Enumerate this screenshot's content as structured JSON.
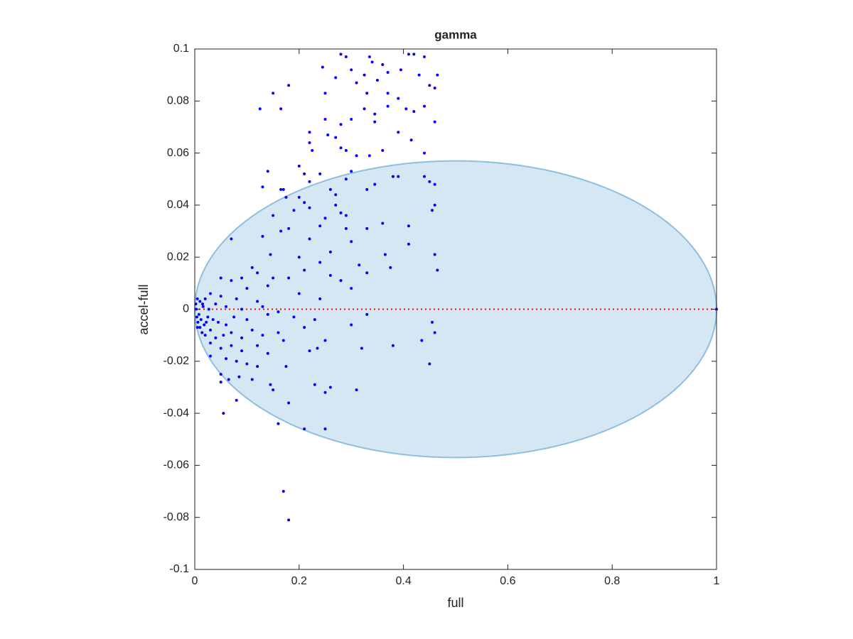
{
  "chart_data": {
    "type": "scatter",
    "title": "gamma",
    "x_label": "full",
    "y_label": "accel-full",
    "color": "#0000ff",
    "x": [
      0.28,
      0.29,
      0.335,
      0.34,
      0.41,
      0.42,
      0.44,
      0.245,
      0.3,
      0.325,
      0.37,
      0.36,
      0.395,
      0.43,
      0.465,
      0.27,
      0.31,
      0.35,
      0.45,
      0.46,
      0.18,
      0.15,
      0.25,
      0.33,
      0.37,
      0.39,
      0.44,
      0.125,
      0.165,
      0.325,
      0.345,
      0.37,
      0.405,
      0.42,
      0.25,
      0.28,
      0.3,
      0.345,
      0.22,
      0.255,
      0.27,
      0.39,
      0.415,
      0.46,
      0.22,
      0.225,
      0.28,
      0.29,
      0.31,
      0.335,
      0.36,
      0.44,
      0.14,
      0.2,
      0.21,
      0.24,
      0.29,
      0.3,
      0.38,
      0.39,
      0.44,
      0.45,
      0.46,
      0.13,
      0.165,
      0.17,
      0.22,
      0.26,
      0.27,
      0.33,
      0.345,
      0.175,
      0.2,
      0.21,
      0.22,
      0.27,
      0.28,
      0.46,
      0.455,
      0.15,
      0.19,
      0.25,
      0.29,
      0.18,
      0.165,
      0.24,
      0.29,
      0.33,
      0.36,
      0.41,
      0.13,
      0.07,
      0.22,
      0.3,
      0.41,
      0.365,
      0.46,
      0.145,
      0.2,
      0.26,
      0.315,
      0.375,
      0.465,
      0.11,
      0.12,
      0.24,
      0.15,
      0.21,
      0.26,
      0.33,
      0.05,
      0.07,
      0.09,
      0.18,
      0.28,
      0.3,
      0.1,
      0.14,
      0.2,
      0.03,
      0.05,
      0.08,
      0.12,
      0.24,
      0.005,
      0.01,
      0.015,
      0.02,
      0.04,
      0.06,
      0.09,
      0.13,
      0.16,
      0.003,
      0.008,
      0.012,
      0.018,
      0.025,
      0.03,
      0.045,
      0.06,
      0.075,
      0.1,
      0.14,
      0.19,
      0.23,
      0.33,
      0.005,
      0.02,
      0.04,
      0.055,
      0.07,
      0.09,
      0.11,
      0.13,
      0.16,
      0.21,
      0.25,
      0.17,
      0.3,
      0.455,
      0.46,
      0.03,
      0.05,
      0.07,
      0.09,
      0.12,
      0.14,
      0.22,
      0.235,
      0.32,
      0.38,
      0.435,
      0.03,
      0.06,
      0.08,
      0.1,
      0.12,
      0.175,
      0.45,
      0.05,
      0.065,
      0.085,
      0.11,
      0.05,
      0.145,
      0.23,
      0.25,
      0.26,
      0.31,
      0.15,
      0.08,
      0.18,
      0.055,
      0.16,
      0.21,
      0.25,
      0.17,
      0.18,
      1.0,
      0.002,
      0.004,
      0.006,
      0.01,
      0.014,
      0.016,
      0.022,
      0.027,
      0.035
    ],
    "y": [
      0.098,
      0.097,
      0.097,
      0.095,
      0.098,
      0.098,
      0.097,
      0.093,
      0.092,
      0.09,
      0.091,
      0.094,
      0.092,
      0.09,
      0.09,
      0.089,
      0.087,
      0.088,
      0.086,
      0.085,
      0.086,
      0.083,
      0.083,
      0.083,
      0.083,
      0.081,
      0.078,
      0.077,
      0.077,
      0.077,
      0.075,
      0.078,
      0.077,
      0.076,
      0.073,
      0.071,
      0.073,
      0.072,
      0.068,
      0.067,
      0.066,
      0.068,
      0.065,
      0.072,
      0.064,
      0.061,
      0.062,
      0.061,
      0.059,
      0.059,
      0.061,
      0.06,
      0.053,
      0.055,
      0.052,
      0.052,
      0.05,
      0.053,
      0.051,
      0.051,
      0.051,
      0.049,
      0.048,
      0.047,
      0.046,
      0.046,
      0.049,
      0.046,
      0.044,
      0.046,
      0.048,
      0.043,
      0.043,
      0.041,
      0.039,
      0.04,
      0.037,
      0.04,
      0.038,
      0.036,
      0.038,
      0.035,
      0.036,
      0.031,
      0.03,
      0.032,
      0.031,
      0.031,
      0.033,
      0.032,
      0.028,
      0.027,
      0.027,
      0.026,
      0.025,
      0.021,
      0.021,
      0.021,
      0.02,
      0.022,
      0.017,
      0.016,
      0.015,
      0.016,
      0.014,
      0.018,
      0.012,
      0.015,
      0.013,
      0.014,
      0.012,
      0.011,
      0.012,
      0.012,
      0.011,
      0.008,
      0.008,
      0.009,
      0.006,
      0.006,
      0.005,
      0.004,
      0.003,
      0.004,
      0.004,
      0.003,
      0.002,
      0.004,
      0.002,
      0.001,
      0.0,
      0.001,
      -0.001,
      0.0,
      -0.002,
      -0.004,
      -0.006,
      -0.003,
      -0.008,
      -0.005,
      -0.006,
      -0.003,
      -0.004,
      -0.002,
      -0.003,
      -0.004,
      -0.002,
      -0.007,
      -0.01,
      -0.011,
      -0.01,
      -0.009,
      -0.011,
      -0.008,
      -0.01,
      -0.009,
      -0.007,
      -0.012,
      -0.012,
      -0.006,
      -0.005,
      -0.009,
      -0.013,
      -0.015,
      -0.014,
      -0.016,
      -0.014,
      -0.017,
      -0.016,
      -0.015,
      -0.015,
      -0.014,
      -0.012,
      -0.018,
      -0.019,
      -0.02,
      -0.021,
      -0.022,
      -0.022,
      -0.021,
      -0.025,
      -0.027,
      -0.026,
      -0.027,
      -0.028,
      -0.029,
      -0.029,
      -0.032,
      -0.03,
      -0.031,
      -0.031,
      -0.035,
      -0.036,
      -0.04,
      -0.044,
      -0.046,
      -0.046,
      -0.07,
      -0.081,
      0.0,
      0.002,
      -0.003,
      -0.005,
      -0.007,
      -0.009,
      0.001,
      -0.005,
      0.0,
      -0.004
    ],
    "ellipse": {
      "center": [
        0.5,
        0
      ],
      "radii": [
        0.5,
        0.057
      ],
      "color": "#d6e7f4",
      "edge_color": "#8fbfe0"
    },
    "reference_line": {
      "y": 0,
      "color": "#ff0000"
    },
    "xlim": [
      0,
      1
    ],
    "xticks": [
      0,
      0.2,
      0.4,
      0.6,
      0.8,
      1
    ],
    "ylim": [
      -0.1,
      0.1
    ],
    "yticks": [
      -0.1,
      -0.08,
      -0.06,
      -0.04,
      -0.02,
      0,
      0.02,
      0.04,
      0.06,
      0.08,
      0.1
    ]
  }
}
